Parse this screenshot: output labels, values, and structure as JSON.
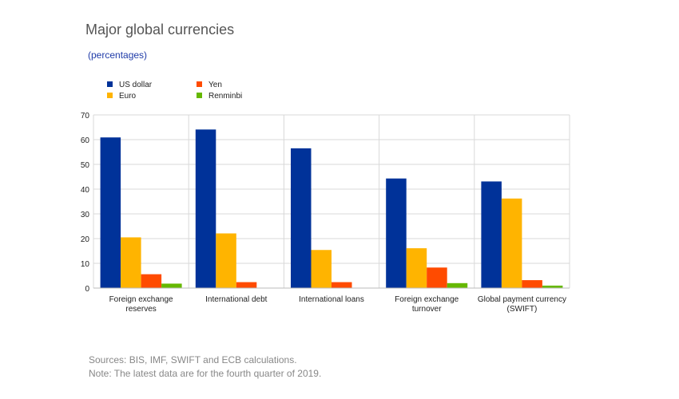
{
  "title": "Major global currencies",
  "subtitle": "(percentages)",
  "chart_data": {
    "type": "bar",
    "categories": [
      [
        "Foreign exchange",
        "reserves"
      ],
      [
        "International debt"
      ],
      [
        "International loans"
      ],
      [
        "Foreign exchange",
        "turnover"
      ],
      [
        "Global payment currency",
        "(SWIFT)"
      ]
    ],
    "series": [
      {
        "name": "US dollar",
        "color": "#003299",
        "values": [
          60.9,
          64.1,
          56.5,
          44.3,
          43.1
        ]
      },
      {
        "name": "Euro",
        "color": "#ffb400",
        "values": [
          20.5,
          22.1,
          15.4,
          16.1,
          36.2
        ]
      },
      {
        "name": "Yen",
        "color": "#ff4b00",
        "values": [
          5.6,
          2.4,
          2.4,
          8.3,
          3.2
        ]
      },
      {
        "name": "Renminbi",
        "color": "#65b800",
        "values": [
          1.8,
          null,
          null,
          2.0,
          1.0
        ]
      }
    ],
    "ylim": [
      0,
      70
    ],
    "yticks": [
      0,
      10,
      20,
      30,
      40,
      50,
      60,
      70
    ],
    "grid": true,
    "legend": "top-left"
  },
  "notes": [
    "Sources: BIS, IMF, SWIFT and ECB calculations.",
    "Note: The latest data are for the fourth quarter of 2019."
  ]
}
